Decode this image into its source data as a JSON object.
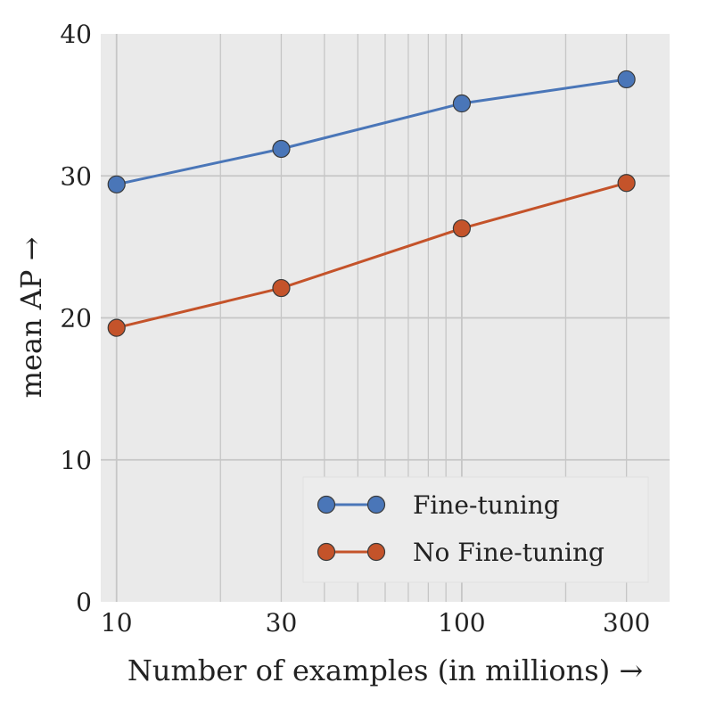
{
  "chart_data": {
    "type": "line",
    "x_scale": "log",
    "x": [
      10,
      30,
      100,
      300
    ],
    "xticks": [
      "10",
      "30",
      "100",
      "300"
    ],
    "yticks": [
      "0",
      "10",
      "20",
      "30",
      "40"
    ],
    "xlim": [
      9,
      400
    ],
    "ylim": [
      0,
      40
    ],
    "xlabel": "Number of examples (in millions) →",
    "ylabel": "mean AP →",
    "grid": true,
    "legend_position": "bottom-right",
    "series": [
      {
        "name": "Fine-tuning",
        "color": "#4a76b8",
        "values": [
          29.4,
          31.9,
          35.1,
          36.8
        ]
      },
      {
        "name": "No Fine-tuning",
        "color": "#c4532a",
        "values": [
          19.3,
          22.1,
          26.3,
          29.5
        ]
      }
    ]
  }
}
